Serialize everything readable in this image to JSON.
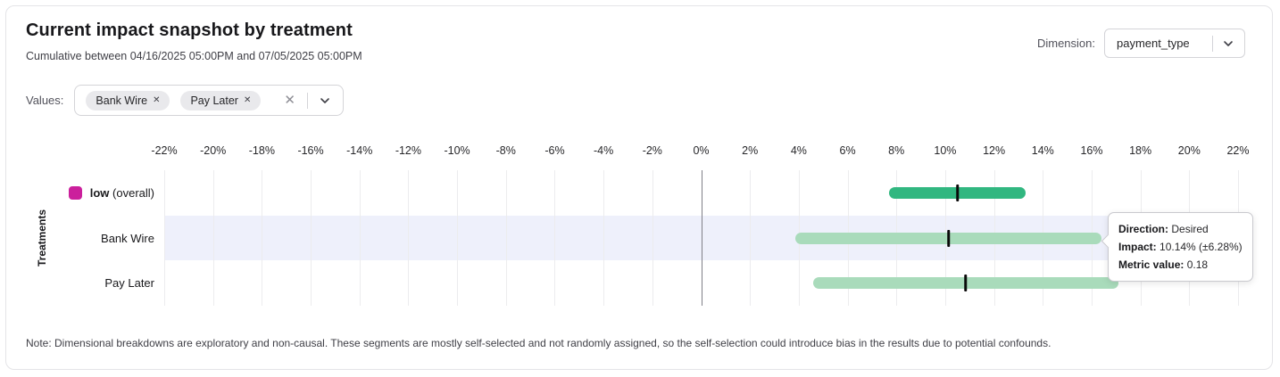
{
  "header": {
    "title": "Current impact snapshot by treatment",
    "subtitle": "Cumulative between 04/16/2025 05:00PM and 07/05/2025 05:00PM",
    "dimension_label": "Dimension:",
    "dimension_value": "payment_type"
  },
  "filters": {
    "values_label": "Values:",
    "chips": [
      "Bank Wire",
      "Pay Later"
    ],
    "chip_remove_icon": "✕",
    "clear_icon": "✕",
    "dropdown_icon": "chevron-down"
  },
  "chart_data": {
    "type": "bar",
    "subtype": "horizontal-confidence-interval",
    "ylabel": "Treatments",
    "x_axis": {
      "min": -22,
      "max": 22,
      "tick_step": 2,
      "ticks": [
        -22,
        -20,
        -18,
        -16,
        -14,
        -12,
        -10,
        -8,
        -6,
        -4,
        -2,
        0,
        2,
        4,
        6,
        8,
        10,
        12,
        14,
        16,
        18,
        20,
        22
      ],
      "tick_labels": [
        "-22%",
        "-20%",
        "-18%",
        "-16%",
        "-14%",
        "-12%",
        "-10%",
        "-8%",
        "-6%",
        "-4%",
        "-2%",
        "0%",
        "2%",
        "4%",
        "6%",
        "8%",
        "10%",
        "12%",
        "14%",
        "16%",
        "18%",
        "20%",
        "22%"
      ],
      "grid": true
    },
    "rows": [
      {
        "label": "low",
        "label_suffix": " (overall)",
        "legend_color": "#cb1f9c",
        "bar_color": "#31b780",
        "low": 7.7,
        "high": 13.3,
        "center": 10.5,
        "highlighted": false
      },
      {
        "label": "Bank Wire",
        "label_suffix": "",
        "legend_color": null,
        "bar_color": "#a9dbbb",
        "low": 3.86,
        "high": 16.42,
        "center": 10.14,
        "highlighted": true
      },
      {
        "label": "Pay Later",
        "label_suffix": "",
        "legend_color": null,
        "bar_color": "#a9dbbb",
        "low": 4.6,
        "high": 17.1,
        "center": 10.84,
        "highlighted": false
      }
    ],
    "marker_color": "#0a0a0a",
    "band_color": "#eef0fb",
    "zero_line_color": "#808088",
    "grid_color": "#ececee"
  },
  "tooltip": {
    "rows": [
      {
        "label": "Direction:",
        "value": "Desired"
      },
      {
        "label": "Impact:",
        "value": "10.14% (±6.28%)"
      },
      {
        "label": "Metric value:",
        "value": "0.18"
      }
    ]
  },
  "note": "Note: Dimensional breakdowns are exploratory and non-causal. These segments are mostly self-selected and not randomly assigned, so the self-selection could introduce bias in the results due to potential confounds."
}
